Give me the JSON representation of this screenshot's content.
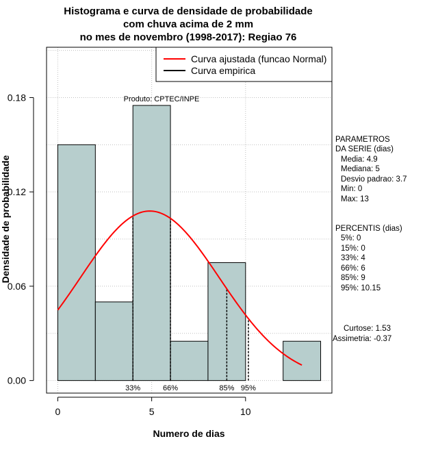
{
  "chart_data": {
    "type": "bar",
    "title": [
      "Histograma e curva de densidade de probabilidade",
      "com chuva acima de 2 mm",
      "no mes de novembro (1998-2017): Regiao 76"
    ],
    "xlabel": "Numero de dias",
    "ylabel": "Densidade de probabilidade",
    "xlim": [
      -0.6,
      14.6
    ],
    "ylim": [
      -0.008,
      0.212
    ],
    "xticks": [
      0,
      5,
      10
    ],
    "yticks": [
      0.0,
      0.06,
      0.12,
      0.18
    ],
    "ytick_labels": [
      "0.00",
      "0.06",
      "0.12",
      "0.18"
    ],
    "grid": true,
    "bins": [
      {
        "start": 0,
        "end": 2,
        "density": 0.15
      },
      {
        "start": 2,
        "end": 4,
        "density": 0.05
      },
      {
        "start": 4,
        "end": 6,
        "density": 0.175
      },
      {
        "start": 6,
        "end": 8,
        "density": 0.025
      },
      {
        "start": 8,
        "end": 10,
        "density": 0.075
      },
      {
        "start": 10,
        "end": 12,
        "density": 0.0
      },
      {
        "start": 12,
        "end": 14,
        "density": 0.025
      }
    ],
    "bar_color": "#b7cecd",
    "curve": {
      "name": "Curva ajustada (funcao Normal)",
      "color": "#ff0000",
      "mean": 4.9,
      "sd": 3.7,
      "x_range": [
        0,
        13
      ]
    },
    "empirical": {
      "name": "Curva empirica",
      "color": "#000000"
    },
    "percentile_lines": [
      {
        "label": "33%",
        "x": 4
      },
      {
        "label": "66%",
        "x": 6
      },
      {
        "label": "85%",
        "x": 9
      },
      {
        "label": "95%",
        "x": 10.15
      }
    ],
    "legend_position": "top-right",
    "annotation": "Produto: CPTEC/INPE"
  },
  "side_panel": {
    "params_title_1": "PARAMETROS",
    "params_title_2": "DA SERIE (dias)",
    "params": [
      "Media: 4.9",
      "Mediana: 5",
      "Desvio padrao: 3.7",
      "Min: 0",
      "Max: 13"
    ],
    "pct_title": "PERCENTIS (dias)",
    "pcts": [
      "5%: 0",
      "15%: 0",
      "33%: 4",
      "66%: 6",
      "85%: 9",
      "95%: 10.15"
    ],
    "curtose": "Curtose: 1.53",
    "assimetria": "Assimetria: -0.37"
  }
}
